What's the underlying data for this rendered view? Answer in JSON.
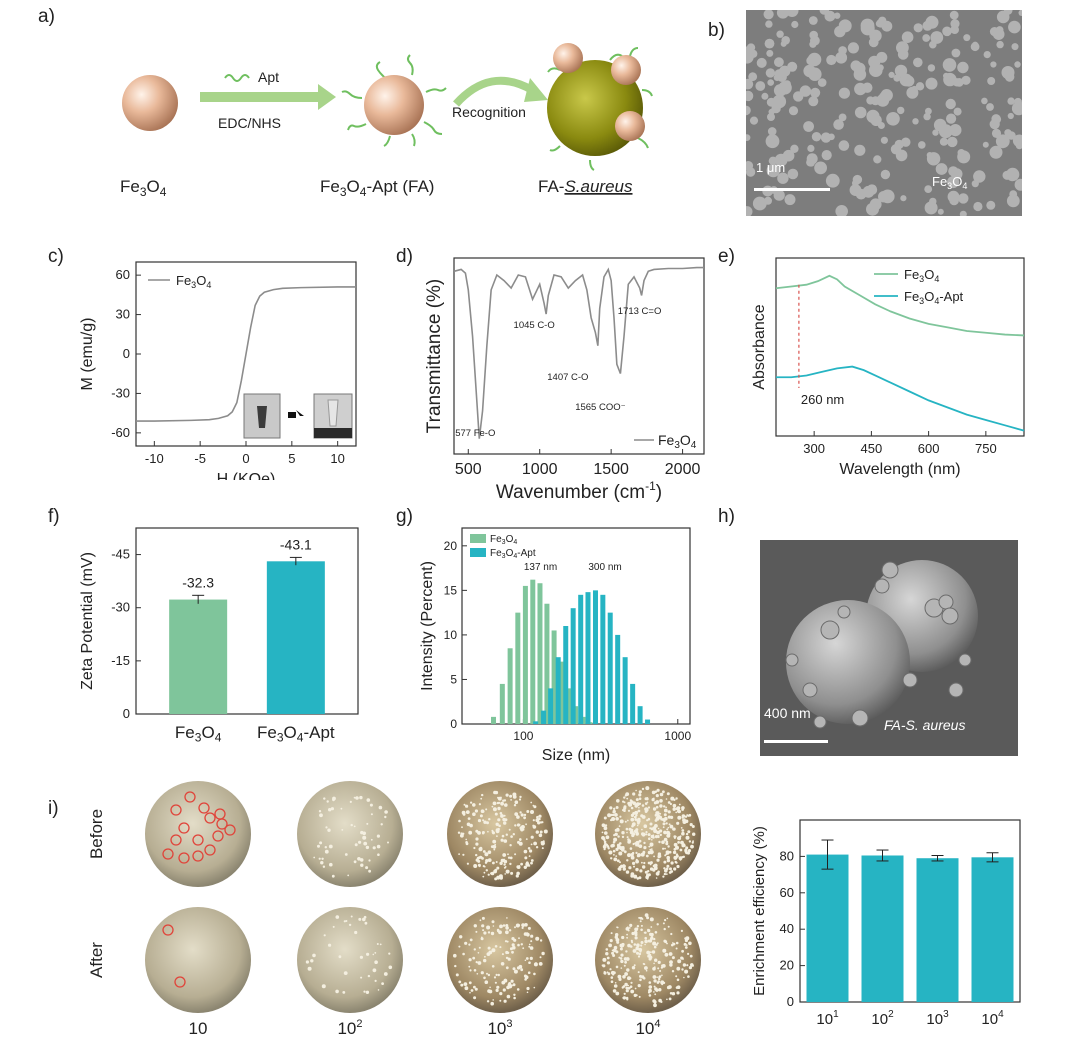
{
  "panels": {
    "a": "a)",
    "b": "b)",
    "c": "c)",
    "d": "d)",
    "e": "e)",
    "f": "f)",
    "g": "g)",
    "h": "h)",
    "i": "i)"
  },
  "schematic": {
    "apt_label": "Apt",
    "coupling_label": "EDC/NHS",
    "recognition_label": "Recognition",
    "species_fe3o4": [
      "Fe",
      "3",
      "O",
      "4"
    ],
    "species_fa": [
      "Fe",
      "3",
      "O",
      "4",
      "-Apt (FA)"
    ],
    "species_fa_sa": [
      "FA-",
      "S.aureus"
    ],
    "colors": {
      "particle": "#e9b99a",
      "arrow": "#a8d48a",
      "bacterium": "#8a8a10",
      "apt": "#6fbf5f"
    }
  },
  "sem_b": {
    "scale_text": "1 μm",
    "material": [
      "Fe",
      "3",
      "O",
      "4"
    ]
  },
  "sem_h": {
    "scale_text": "400 nm",
    "label": [
      "FA-",
      "S. aureus"
    ]
  },
  "plates": {
    "row_labels": [
      "Before",
      "After"
    ],
    "col_labels": [
      [
        "10",
        ""
      ],
      [
        "10",
        "2"
      ],
      [
        "10",
        "3"
      ],
      [
        "10",
        "4"
      ]
    ],
    "marker_color": "#e0443a"
  },
  "colors": {
    "fe3o4": "#7fc59b",
    "apt": "#26b4c3",
    "grey": "#8c8c8c",
    "red_dash": "#d9534f"
  },
  "chart_data": [
    {
      "id": "c",
      "type": "line",
      "xlabel": "H (KOe)",
      "ylabel": "M (emu/g)",
      "xlim": [
        -12,
        12
      ],
      "ylim": [
        -70,
        70
      ],
      "xticks": [
        "-10",
        "-5",
        "0",
        "5",
        "10"
      ],
      "xtick_vals": [
        -10,
        -5,
        0,
        5,
        10
      ],
      "yticks": [
        "60",
        "30",
        "0",
        "-30",
        "-60"
      ],
      "ytick_vals": [
        60,
        30,
        0,
        -30,
        -60
      ],
      "legend": [
        "Fe",
        "3",
        "O",
        "4"
      ],
      "series": [
        {
          "name": "Fe3O4",
          "x": [
            -12,
            -10,
            -6,
            -4,
            -3,
            -2,
            -1.5,
            -1,
            -0.5,
            0,
            0.5,
            1,
            1.5,
            2,
            3,
            4,
            6,
            10,
            12
          ],
          "y": [
            -51,
            -51,
            -50.5,
            -50,
            -49,
            -47,
            -44,
            -37,
            -20,
            0,
            20,
            37,
            44,
            47,
            49,
            50,
            50.5,
            51,
            51
          ]
        }
      ]
    },
    {
      "id": "d",
      "type": "line",
      "xlabel": "Wavenumber (cm",
      "xlabel_sup": "-1",
      "xlabel_end": ")",
      "ylabel": "Transmittance (%)",
      "xlim": [
        400,
        2150
      ],
      "xticks": [
        "500",
        "1000",
        "1500",
        "2000"
      ],
      "xtick_vals": [
        500,
        1000,
        1500,
        2000
      ],
      "legend": [
        "Fe",
        "3",
        "O",
        "4"
      ],
      "annotations": [
        {
          "x": 577,
          "text": "577 Fe-O"
        },
        {
          "x": 1045,
          "text": "1045 C-O"
        },
        {
          "x": 1407,
          "text": "1407 C-O"
        },
        {
          "x": 1565,
          "text": "1565 COO⁻"
        },
        {
          "x": 1713,
          "text": "1713 C=O"
        }
      ],
      "series": [
        {
          "name": "Fe3O4",
          "x": [
            400,
            450,
            480,
            500,
            530,
            560,
            577,
            600,
            630,
            660,
            700,
            750,
            800,
            850,
            900,
            950,
            1000,
            1030,
            1045,
            1060,
            1100,
            1150,
            1200,
            1250,
            1300,
            1330,
            1360,
            1390,
            1407,
            1420,
            1450,
            1480,
            1500,
            1520,
            1540,
            1565,
            1590,
            1620,
            1660,
            1700,
            1713,
            1730,
            1760,
            1800,
            1900,
            2000,
            2100,
            2150
          ],
          "y": [
            95,
            96,
            94,
            85,
            60,
            25,
            5,
            20,
            55,
            85,
            93,
            90,
            86,
            93,
            92,
            80,
            88,
            78,
            72,
            82,
            93,
            92,
            86,
            90,
            93,
            85,
            70,
            62,
            55,
            75,
            92,
            96,
            90,
            70,
            45,
            40,
            60,
            88,
            92,
            86,
            82,
            90,
            95,
            96,
            96.5,
            96.5,
            97,
            97
          ]
        }
      ]
    },
    {
      "id": "e",
      "type": "line",
      "xlabel": "Wavelength (nm)",
      "ylabel": "Absorbance",
      "xlim": [
        200,
        850
      ],
      "ylim": [
        0,
        1
      ],
      "xticks": [
        "300",
        "450",
        "600",
        "750"
      ],
      "xtick_vals": [
        300,
        450,
        600,
        750
      ],
      "marker_text": "260 nm",
      "marker_x": 260,
      "legend": [
        [
          "Fe",
          "3",
          "O",
          "4",
          ""
        ],
        [
          "Fe",
          "3",
          "O",
          "4",
          "-Apt"
        ]
      ],
      "series": [
        {
          "name": "Fe3O4",
          "x": [
            200,
            240,
            280,
            310,
            340,
            360,
            380,
            420,
            460,
            500,
            550,
            600,
            650,
            700,
            750,
            800,
            850
          ],
          "y": [
            0.83,
            0.84,
            0.85,
            0.87,
            0.9,
            0.88,
            0.84,
            0.79,
            0.74,
            0.7,
            0.66,
            0.63,
            0.61,
            0.59,
            0.58,
            0.57,
            0.565
          ]
        },
        {
          "name": "Fe3O4-Apt",
          "x": [
            200,
            240,
            280,
            320,
            360,
            400,
            430,
            460,
            500,
            550,
            600,
            650,
            700,
            750,
            800,
            850
          ],
          "y": [
            0.33,
            0.33,
            0.34,
            0.36,
            0.38,
            0.39,
            0.37,
            0.34,
            0.3,
            0.25,
            0.2,
            0.16,
            0.12,
            0.09,
            0.06,
            0.03
          ]
        }
      ]
    },
    {
      "id": "f",
      "type": "bar",
      "ylabel": "Zeta Potential (mV)",
      "ylim": [
        0,
        -52.5
      ],
      "yticks": [
        "0",
        "-15",
        "-30",
        "-45"
      ],
      "ytick_vals": [
        0,
        -15,
        -30,
        -45
      ],
      "categories": [
        [
          "Fe",
          "3",
          "O",
          "4",
          ""
        ],
        [
          "Fe",
          "3",
          "O",
          "4",
          "-Apt"
        ]
      ],
      "values": [
        -32.3,
        -43.1
      ],
      "errors": [
        1.2,
        1.1
      ],
      "value_labels": [
        "-32.3",
        "-43.1"
      ]
    },
    {
      "id": "g",
      "type": "bar",
      "xlabel": "Size (nm)",
      "ylabel": "Intensity (Percent)",
      "xscale": "log",
      "xlim": [
        40,
        1200
      ],
      "ylim": [
        0,
        22
      ],
      "xticks": [
        "100",
        "1000"
      ],
      "xtick_vals": [
        100,
        1000
      ],
      "yticks": [
        "0",
        "5",
        "10",
        "15",
        "20"
      ],
      "ytick_vals": [
        0,
        5,
        10,
        15,
        20
      ],
      "peak_labels": [
        {
          "x": 137,
          "text": "137 nm"
        },
        {
          "x": 300,
          "text": "300 nm"
        }
      ],
      "legend": [
        [
          "Fe",
          "3",
          "O",
          "4",
          ""
        ],
        [
          "Fe",
          "3",
          "O",
          "4",
          "-Apt"
        ]
      ],
      "series": [
        {
          "name": "Fe3O4",
          "x": [
            64,
            73,
            82,
            92,
            103,
            115,
            128,
            142,
            158,
            176,
            196,
            218,
            243,
            270
          ],
          "y": [
            0.8,
            4.5,
            8.5,
            12.5,
            15.5,
            16.2,
            15.8,
            13.5,
            10.5,
            7,
            4,
            2,
            0.8,
            0.2
          ]
        },
        {
          "name": "Fe3O4-Apt",
          "x": [
            120,
            135,
            150,
            168,
            188,
            210,
            235,
            262,
            293,
            327,
            365,
            408,
            456,
            510,
            570,
            637
          ],
          "y": [
            0.3,
            1.5,
            4,
            7.5,
            11,
            13,
            14.5,
            14.8,
            15,
            14.5,
            12.5,
            10,
            7.5,
            4.5,
            2,
            0.5
          ]
        }
      ]
    },
    {
      "id": "i",
      "type": "bar",
      "ylabel": "Enrichment efficiency (%)",
      "ylim": [
        0,
        100
      ],
      "yticks": [
        "0",
        "20",
        "40",
        "60",
        "80"
      ],
      "ytick_vals": [
        0,
        20,
        40,
        60,
        80
      ],
      "categories": [
        [
          "10",
          "1"
        ],
        [
          "10",
          "2"
        ],
        [
          "10",
          "3"
        ],
        [
          "10",
          "4"
        ]
      ],
      "values": [
        81,
        80.5,
        79,
        79.5
      ],
      "errors": [
        8,
        3,
        1.5,
        2.5
      ]
    }
  ]
}
